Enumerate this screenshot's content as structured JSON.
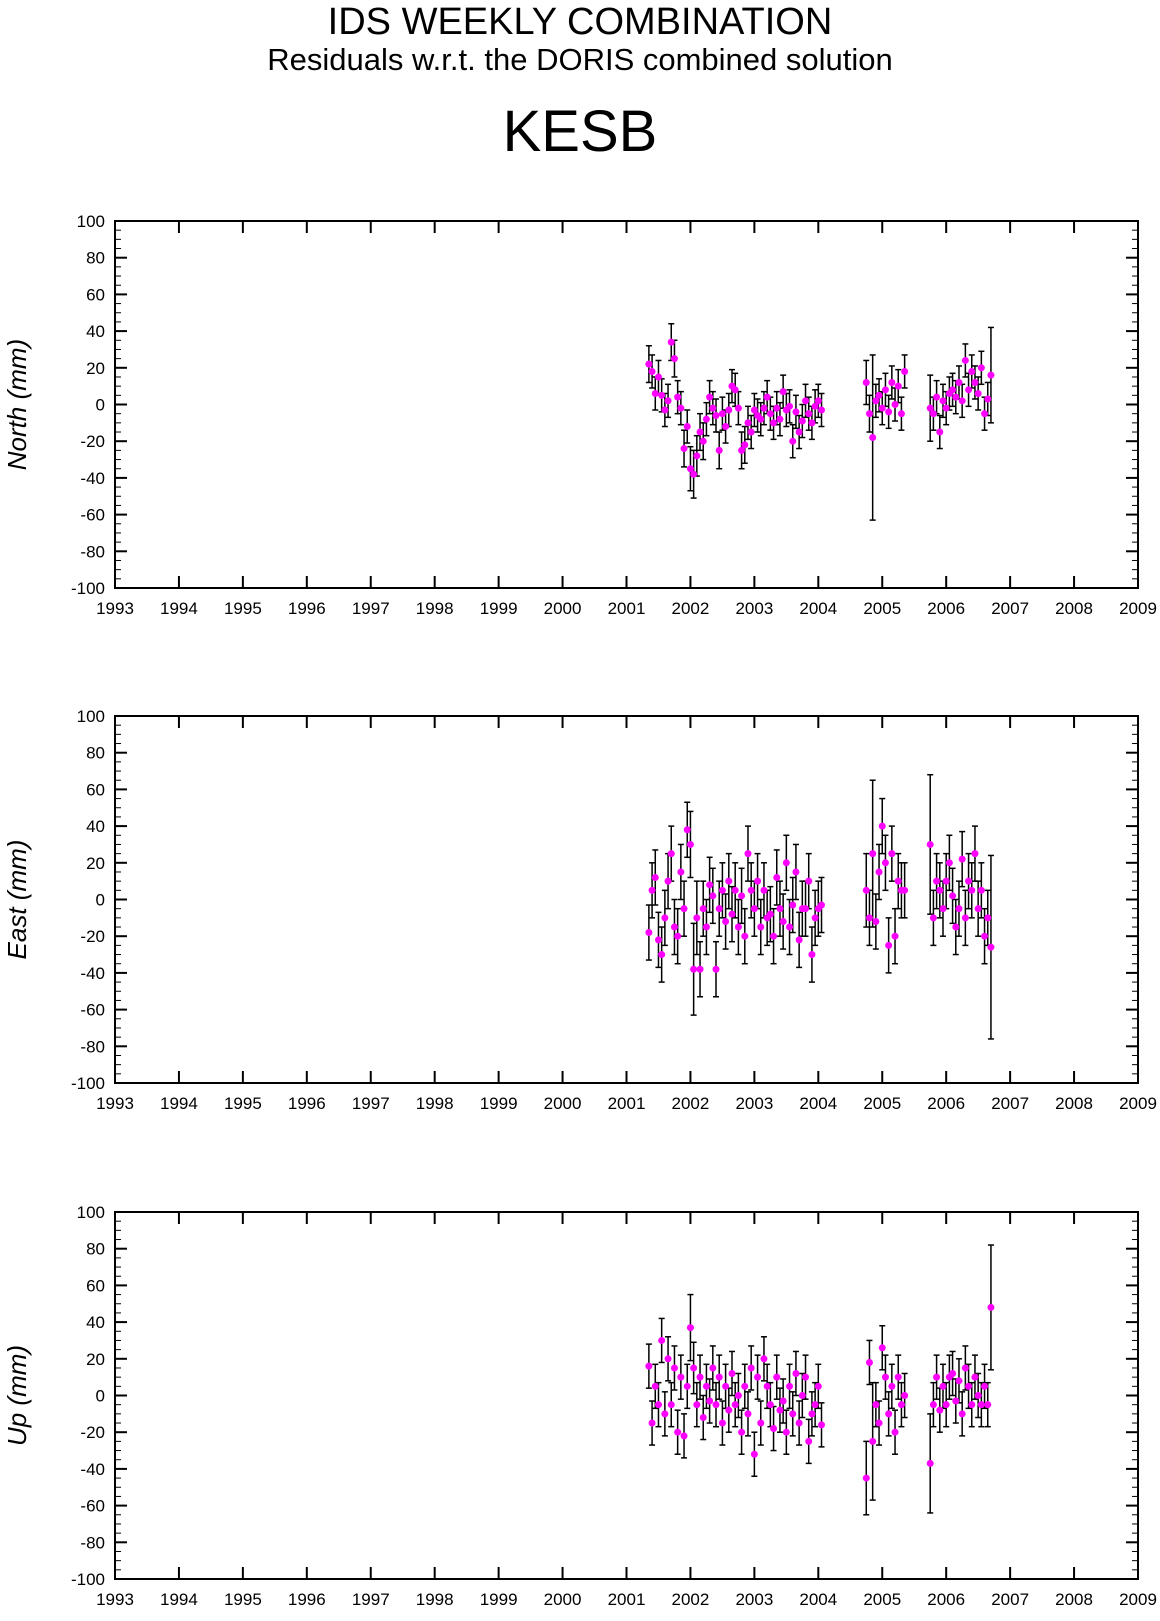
{
  "title": "IDS WEEKLY COMBINATION",
  "subtitle": "Residuals w.r.t. the DORIS combined solution",
  "station": "KESB",
  "colors": {
    "point": "#ff00ff",
    "errorbar": "#000000",
    "axis": "#000000"
  },
  "chart_data": [
    {
      "type": "scatter",
      "ylabel": "North (mm)",
      "xlim": [
        1993,
        2009
      ],
      "ylim": [
        -100,
        100
      ],
      "xticks": [
        "1993",
        "1994",
        "1995",
        "1996",
        "1997",
        "1998",
        "1999",
        "2000",
        "2001",
        "2002",
        "2003",
        "2004",
        "2005",
        "2006",
        "2007",
        "2008",
        "2009"
      ],
      "yticks": [
        "-100",
        "-80",
        "-60",
        "-40",
        "-20",
        "0",
        "20",
        "40",
        "60",
        "80",
        "100"
      ],
      "grid": false,
      "series": [
        {
          "x": [
            2001.35,
            2001.4,
            2001.45,
            2001.5,
            2001.55,
            2001.6,
            2001.65,
            2001.7,
            2001.75,
            2001.8,
            2001.85,
            2001.9,
            2001.95,
            2002.0,
            2002.05,
            2002.1,
            2002.15,
            2002.2,
            2002.25,
            2002.3,
            2002.35,
            2002.4,
            2002.45,
            2002.5,
            2002.55,
            2002.6,
            2002.65,
            2002.7,
            2002.75,
            2002.8,
            2002.85,
            2002.9,
            2002.95,
            2003.0,
            2003.05,
            2003.1,
            2003.15,
            2003.2,
            2003.25,
            2003.3,
            2003.35,
            2003.4,
            2003.45,
            2003.5,
            2003.55,
            2003.6,
            2003.65,
            2003.7,
            2003.75,
            2003.8,
            2003.85,
            2003.9,
            2003.95,
            2004.0,
            2004.05,
            2004.75,
            2004.8,
            2004.85,
            2004.9,
            2004.95,
            2005.0,
            2005.05,
            2005.1,
            2005.15,
            2005.2,
            2005.25,
            2005.3,
            2005.35,
            2005.75,
            2005.8,
            2005.85,
            2005.9,
            2005.95,
            2006.0,
            2006.05,
            2006.1,
            2006.15,
            2006.2,
            2006.25,
            2006.3,
            2006.35,
            2006.4,
            2006.45,
            2006.5,
            2006.55,
            2006.6,
            2006.65,
            2006.7
          ],
          "y": [
            22,
            18,
            6,
            15,
            5,
            -3,
            2,
            34,
            25,
            4,
            -2,
            -24,
            -12,
            -35,
            -38,
            -28,
            -15,
            -20,
            -8,
            4,
            -2,
            -6,
            -25,
            -5,
            -12,
            -3,
            10,
            8,
            -2,
            -25,
            -22,
            -10,
            -15,
            -3,
            -6,
            -8,
            -2,
            4,
            -5,
            -10,
            -2,
            -8,
            7,
            -3,
            -1,
            -20,
            -4,
            -15,
            -9,
            2,
            -5,
            -10,
            -1,
            2,
            -3,
            12,
            -5,
            -18,
            2,
            5,
            -2,
            8,
            -4,
            12,
            0,
            10,
            -5,
            18,
            -2,
            -5,
            4,
            -15,
            2,
            -2,
            6,
            8,
            4,
            12,
            2,
            24,
            8,
            18,
            12,
            6,
            20,
            -5,
            3,
            16
          ],
          "err": [
            10,
            9,
            9,
            9,
            9,
            9,
            9,
            10,
            10,
            9,
            9,
            10,
            9,
            12,
            13,
            11,
            10,
            10,
            9,
            9,
            9,
            9,
            10,
            9,
            9,
            9,
            9,
            9,
            9,
            10,
            10,
            9,
            9,
            9,
            9,
            9,
            9,
            9,
            9,
            9,
            9,
            9,
            9,
            9,
            9,
            9,
            9,
            9,
            9,
            9,
            9,
            9,
            9,
            9,
            9,
            12,
            10,
            45,
            9,
            9,
            9,
            9,
            9,
            9,
            9,
            9,
            9,
            9,
            18,
            9,
            9,
            9,
            9,
            9,
            9,
            9,
            9,
            9,
            9,
            9,
            9,
            9,
            9,
            9,
            9,
            9,
            9,
            26
          ]
        }
      ]
    },
    {
      "type": "scatter",
      "ylabel": "East (mm)",
      "xlim": [
        1993,
        2009
      ],
      "ylim": [
        -100,
        100
      ],
      "xticks": [
        "1993",
        "1994",
        "1995",
        "1996",
        "1997",
        "1998",
        "1999",
        "2000",
        "2001",
        "2002",
        "2003",
        "2004",
        "2005",
        "2006",
        "2007",
        "2008",
        "2009"
      ],
      "yticks": [
        "-100",
        "-80",
        "-60",
        "-40",
        "-20",
        "0",
        "20",
        "40",
        "60",
        "80",
        "100"
      ],
      "grid": false,
      "series": [
        {
          "x": [
            2001.35,
            2001.4,
            2001.45,
            2001.5,
            2001.55,
            2001.6,
            2001.65,
            2001.7,
            2001.75,
            2001.8,
            2001.85,
            2001.9,
            2001.95,
            2002.0,
            2002.05,
            2002.1,
            2002.15,
            2002.2,
            2002.25,
            2002.3,
            2002.35,
            2002.4,
            2002.45,
            2002.5,
            2002.55,
            2002.6,
            2002.65,
            2002.7,
            2002.75,
            2002.8,
            2002.85,
            2002.9,
            2002.95,
            2003.0,
            2003.05,
            2003.1,
            2003.15,
            2003.2,
            2003.25,
            2003.3,
            2003.35,
            2003.4,
            2003.45,
            2003.5,
            2003.55,
            2003.6,
            2003.65,
            2003.7,
            2003.75,
            2003.8,
            2003.85,
            2003.9,
            2003.95,
            2004.0,
            2004.05,
            2004.75,
            2004.8,
            2004.85,
            2004.9,
            2004.95,
            2005.0,
            2005.05,
            2005.1,
            2005.15,
            2005.2,
            2005.25,
            2005.3,
            2005.35,
            2005.75,
            2005.8,
            2005.85,
            2005.9,
            2005.95,
            2006.0,
            2006.05,
            2006.1,
            2006.15,
            2006.2,
            2006.25,
            2006.3,
            2006.35,
            2006.4,
            2006.45,
            2006.5,
            2006.55,
            2006.6,
            2006.65,
            2006.7
          ],
          "y": [
            -18,
            5,
            12,
            -22,
            -30,
            -10,
            10,
            25,
            -15,
            -20,
            15,
            -5,
            38,
            30,
            -38,
            -10,
            -38,
            -5,
            -15,
            8,
            2,
            -38,
            -5,
            5,
            -12,
            10,
            -8,
            5,
            -15,
            2,
            -20,
            25,
            5,
            -5,
            10,
            -15,
            5,
            -10,
            -8,
            -20,
            12,
            -5,
            -12,
            20,
            -15,
            -3,
            15,
            -22,
            -5,
            -5,
            10,
            -30,
            -10,
            -5,
            -3,
            5,
            -10,
            25,
            -12,
            15,
            40,
            20,
            -25,
            25,
            -20,
            10,
            5,
            5,
            30,
            -10,
            10,
            5,
            -5,
            10,
            20,
            2,
            -15,
            -5,
            22,
            -10,
            10,
            5,
            25,
            -5,
            5,
            -20,
            -10,
            -26
          ],
          "err": [
            15,
            15,
            15,
            15,
            15,
            15,
            15,
            15,
            15,
            15,
            15,
            15,
            15,
            18,
            25,
            20,
            15,
            15,
            15,
            15,
            15,
            15,
            15,
            15,
            15,
            15,
            15,
            15,
            15,
            15,
            15,
            15,
            15,
            15,
            15,
            15,
            15,
            15,
            15,
            15,
            15,
            15,
            15,
            15,
            15,
            15,
            15,
            15,
            15,
            15,
            15,
            15,
            15,
            15,
            15,
            20,
            15,
            40,
            15,
            15,
            15,
            15,
            15,
            15,
            15,
            15,
            15,
            15,
            38,
            15,
            15,
            15,
            15,
            15,
            15,
            15,
            15,
            15,
            15,
            15,
            15,
            15,
            15,
            15,
            15,
            15,
            15,
            50
          ]
        }
      ]
    },
    {
      "type": "scatter",
      "ylabel": "Up (mm)",
      "xlim": [
        1993,
        2009
      ],
      "ylim": [
        -100,
        100
      ],
      "xticks": [
        "1993",
        "1994",
        "1995",
        "1996",
        "1997",
        "1998",
        "1999",
        "2000",
        "2001",
        "2002",
        "2003",
        "2004",
        "2005",
        "2006",
        "2007",
        "2008",
        "2009"
      ],
      "yticks": [
        "-100",
        "-80",
        "-60",
        "-40",
        "-20",
        "0",
        "20",
        "40",
        "60",
        "80",
        "100"
      ],
      "grid": false,
      "series": [
        {
          "x": [
            2001.35,
            2001.4,
            2001.45,
            2001.5,
            2001.55,
            2001.6,
            2001.65,
            2001.7,
            2001.75,
            2001.8,
            2001.85,
            2001.9,
            2001.95,
            2002.0,
            2002.05,
            2002.1,
            2002.15,
            2002.2,
            2002.25,
            2002.3,
            2002.35,
            2002.4,
            2002.45,
            2002.5,
            2002.55,
            2002.6,
            2002.65,
            2002.7,
            2002.75,
            2002.8,
            2002.85,
            2002.9,
            2002.95,
            2003.0,
            2003.05,
            2003.1,
            2003.15,
            2003.2,
            2003.25,
            2003.3,
            2003.35,
            2003.4,
            2003.45,
            2003.5,
            2003.55,
            2003.6,
            2003.65,
            2003.7,
            2003.75,
            2003.8,
            2003.85,
            2003.9,
            2003.95,
            2004.0,
            2004.05,
            2004.75,
            2004.8,
            2004.85,
            2004.9,
            2004.95,
            2005.0,
            2005.05,
            2005.1,
            2005.15,
            2005.2,
            2005.25,
            2005.3,
            2005.35,
            2005.75,
            2005.8,
            2005.85,
            2005.9,
            2005.95,
            2006.0,
            2006.05,
            2006.1,
            2006.15,
            2006.2,
            2006.25,
            2006.3,
            2006.35,
            2006.4,
            2006.45,
            2006.5,
            2006.55,
            2006.6,
            2006.65,
            2006.7
          ],
          "y": [
            16,
            -15,
            5,
            -5,
            30,
            -10,
            20,
            -5,
            15,
            -20,
            10,
            -22,
            5,
            37,
            15,
            -5,
            10,
            -12,
            5,
            -3,
            15,
            -5,
            10,
            -15,
            5,
            -8,
            12,
            -5,
            0,
            -20,
            5,
            -10,
            15,
            -32,
            10,
            -15,
            20,
            5,
            -5,
            -18,
            10,
            -8,
            -3,
            -20,
            5,
            -10,
            12,
            -15,
            0,
            10,
            -25,
            -10,
            -5,
            5,
            -16,
            -45,
            18,
            -25,
            -5,
            -15,
            26,
            10,
            -10,
            5,
            -20,
            10,
            -5,
            0,
            -37,
            -5,
            10,
            -8,
            5,
            -5,
            10,
            12,
            -3,
            8,
            -10,
            15,
            5,
            -5,
            10,
            0,
            -5,
            5,
            -5,
            48
          ],
          "err": [
            12,
            12,
            12,
            12,
            12,
            12,
            12,
            12,
            12,
            12,
            12,
            12,
            12,
            18,
            14,
            12,
            12,
            12,
            12,
            12,
            12,
            12,
            12,
            12,
            12,
            12,
            12,
            12,
            12,
            12,
            12,
            12,
            12,
            12,
            12,
            12,
            12,
            12,
            12,
            12,
            12,
            12,
            12,
            12,
            12,
            12,
            12,
            12,
            12,
            12,
            12,
            12,
            12,
            12,
            12,
            20,
            12,
            32,
            12,
            12,
            12,
            12,
            12,
            12,
            12,
            12,
            12,
            12,
            27,
            12,
            12,
            12,
            12,
            12,
            12,
            12,
            12,
            12,
            12,
            12,
            12,
            12,
            12,
            12,
            12,
            12,
            12,
            34
          ]
        }
      ]
    }
  ]
}
